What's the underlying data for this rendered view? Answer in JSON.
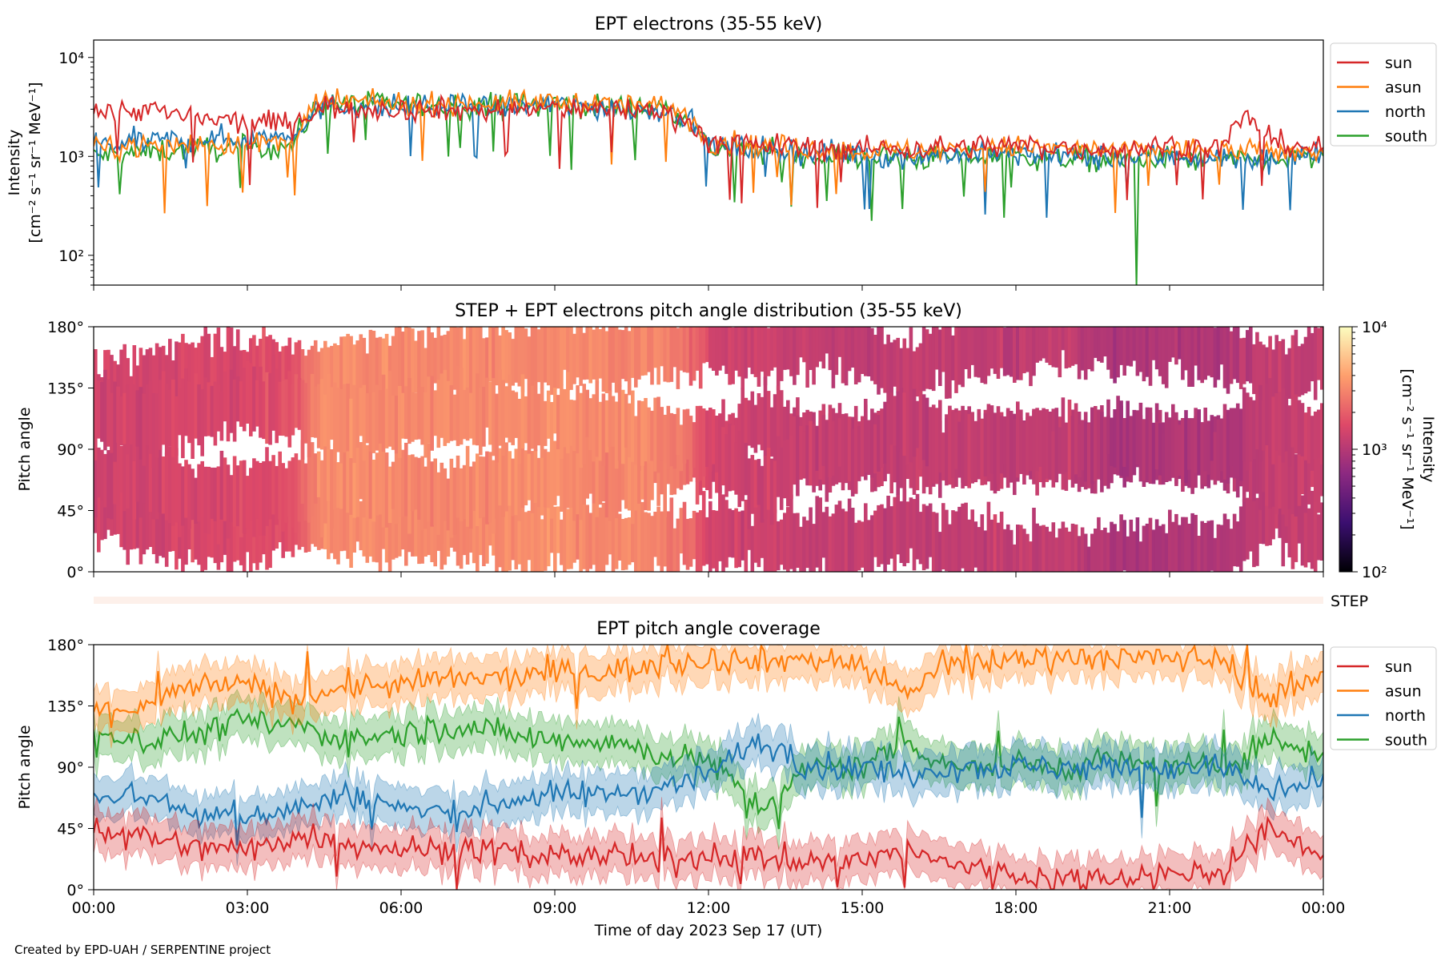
{
  "credit": "Created by EPD-UAH / SERPENTINE project",
  "colors": {
    "sun": "#d62728",
    "asun": "#ff7f0e",
    "north": "#1f77b4",
    "south": "#2ca02c",
    "colormap": [
      "#000004",
      "#3b0f70",
      "#8c2981",
      "#de4968",
      "#fe9f6d",
      "#fcfdbf"
    ]
  },
  "chart_data": [
    {
      "type": "line",
      "title": "EPT electrons (35-55 keV)",
      "ylabel_line1": "Intensity",
      "ylabel_line2": "[cm⁻² s⁻¹ sr⁻¹ MeV⁻¹]",
      "yscale": "log",
      "ylim": [
        50,
        15000
      ],
      "yticks": [
        {
          "value": 100,
          "label": "10²"
        },
        {
          "value": 1000,
          "label": "10³"
        },
        {
          "value": 10000,
          "label": "10⁴"
        }
      ],
      "xlim": [
        0,
        24
      ],
      "legend": [
        "sun",
        "asun",
        "north",
        "south"
      ],
      "legend_placement": "outside-right",
      "series": [
        {
          "name": "sun",
          "x": [
            0,
            1,
            2,
            3,
            3.9,
            4.5,
            6,
            8,
            9,
            10,
            11,
            11.5,
            12,
            13,
            14,
            15,
            16,
            17,
            18,
            19,
            20,
            21,
            22,
            22.5,
            23,
            24
          ],
          "values": [
            2800,
            3000,
            2400,
            2200,
            2200,
            3200,
            3000,
            2900,
            3100,
            3000,
            2900,
            2400,
            1400,
            1300,
            1250,
            1200,
            1200,
            1250,
            1300,
            1200,
            1200,
            1300,
            1200,
            2500,
            1400,
            1200
          ]
        },
        {
          "name": "asun",
          "x": [
            0,
            1,
            2,
            3,
            3.9,
            4.5,
            6,
            8,
            9,
            10,
            11,
            11.5,
            12,
            13,
            14,
            15,
            16,
            17,
            18,
            19,
            20,
            21,
            22,
            23,
            24
          ],
          "values": [
            1200,
            1300,
            1350,
            1300,
            1450,
            3600,
            3400,
            3500,
            3600,
            3400,
            3300,
            2800,
            1400,
            1300,
            1200,
            1150,
            1150,
            1200,
            1250,
            1200,
            1150,
            1200,
            1150,
            1100,
            1150
          ]
        },
        {
          "name": "north",
          "x": [
            0,
            1,
            2,
            3,
            3.9,
            4.5,
            6,
            8,
            9,
            10,
            11,
            11.5,
            12,
            13,
            14,
            15,
            16,
            17,
            18,
            19,
            20,
            21,
            22,
            23,
            24
          ],
          "values": [
            1300,
            1400,
            1500,
            1500,
            1700,
            3300,
            3100,
            3200,
            3300,
            3100,
            3000,
            2600,
            1300,
            1200,
            1100,
            1050,
            1000,
            1050,
            1050,
            1000,
            950,
            1000,
            950,
            950,
            1050
          ]
        },
        {
          "name": "south",
          "x": [
            0,
            1,
            2,
            3,
            3.9,
            4.5,
            6,
            8,
            9,
            10,
            11,
            11.5,
            12,
            13,
            14,
            15,
            16,
            17,
            18,
            19,
            20,
            21,
            22,
            23,
            24
          ],
          "values": [
            1000,
            1100,
            1200,
            1200,
            1300,
            3500,
            3300,
            3300,
            3400,
            3200,
            3100,
            2700,
            1200,
            1100,
            1000,
            1000,
            950,
            1000,
            1000,
            950,
            900,
            950,
            900,
            900,
            1000
          ]
        }
      ],
      "dips": [
        {
          "series": "south",
          "x": 20.35,
          "value": 50
        }
      ]
    },
    {
      "type": "heatmap",
      "title": "STEP + EPT electrons pitch angle distribution (35-55 keV)",
      "ylabel": "Pitch angle",
      "ylim": [
        0,
        180
      ],
      "yticks": [
        "0°",
        "45°",
        "90°",
        "135°",
        "180°"
      ],
      "xlim": [
        0,
        24
      ],
      "colorbar": {
        "label": "Intensity",
        "units": "[cm⁻² s⁻¹ sr⁻¹ MeV⁻¹]",
        "scale": "log",
        "range": [
          100,
          10000
        ],
        "ticks": [
          {
            "value": 100,
            "label": "10²"
          },
          {
            "value": 1000,
            "label": "10³"
          },
          {
            "value": 10000,
            "label": "10⁴"
          }
        ]
      },
      "intensity_by_time": {
        "x": [
          0,
          1,
          2,
          3,
          3.9,
          4.5,
          6,
          8,
          9,
          10,
          11,
          11.5,
          12,
          13,
          14,
          15,
          16,
          17,
          18,
          19,
          20,
          21,
          22,
          23,
          24
        ],
        "values": [
          1300,
          1400,
          1500,
          1500,
          1700,
          3300,
          3100,
          3200,
          3300,
          3100,
          3000,
          2600,
          1400,
          1300,
          1200,
          1150,
          1150,
          1150,
          1150,
          1150,
          900,
          950,
          950,
          1200,
          1200
        ]
      },
      "step_label": "STEP"
    },
    {
      "type": "line",
      "title": "EPT pitch angle coverage",
      "ylabel": "Pitch angle",
      "xlabel": "Time of day 2023 Sep 17 (UT)",
      "ylim": [
        0,
        180
      ],
      "yticks": [
        "0°",
        "45°",
        "90°",
        "135°",
        "180°"
      ],
      "xlim": [
        0,
        24
      ],
      "xticks": [
        "00:00",
        "03:00",
        "06:00",
        "09:00",
        "12:00",
        "15:00",
        "18:00",
        "21:00",
        "00:00"
      ],
      "legend": [
        "sun",
        "asun",
        "north",
        "south"
      ],
      "legend_placement": "outside-right",
      "band_halfwidth_deg": 15,
      "series": [
        {
          "name": "sun",
          "x": [
            0,
            1,
            2,
            3,
            4,
            5,
            6,
            7,
            8,
            9,
            10,
            11,
            12,
            13,
            14,
            15,
            15.8,
            16.5,
            17,
            18,
            19,
            20,
            21,
            22,
            23,
            24
          ],
          "values": [
            45,
            40,
            30,
            30,
            40,
            35,
            30,
            30,
            28,
            25,
            25,
            20,
            25,
            25,
            20,
            20,
            30,
            20,
            18,
            10,
            8,
            10,
            12,
            12,
            45,
            25
          ]
        },
        {
          "name": "asun",
          "x": [
            0,
            1,
            2,
            3,
            4,
            5,
            6,
            7,
            8,
            9,
            10,
            11,
            12,
            13,
            14,
            15,
            15.8,
            16.5,
            17,
            18,
            19,
            20,
            21,
            22,
            23,
            24
          ],
          "values": [
            130,
            135,
            150,
            150,
            140,
            150,
            150,
            155,
            155,
            160,
            160,
            165,
            170,
            168,
            170,
            165,
            145,
            160,
            165,
            170,
            172,
            170,
            170,
            170,
            140,
            160
          ]
        },
        {
          "name": "north",
          "x": [
            0,
            1,
            2,
            3,
            4,
            5,
            6,
            7,
            8,
            9,
            10,
            11,
            12,
            13,
            14,
            15,
            15.8,
            16.5,
            17,
            18,
            19,
            20,
            21,
            22,
            23,
            24
          ],
          "values": [
            70,
            70,
            55,
            55,
            60,
            70,
            60,
            55,
            65,
            70,
            70,
            75,
            85,
            110,
            90,
            90,
            85,
            90,
            90,
            90,
            90,
            90,
            90,
            90,
            70,
            80
          ]
        },
        {
          "name": "south",
          "x": [
            0,
            1,
            2,
            3,
            4,
            5,
            6,
            7,
            8,
            9,
            10,
            11,
            12,
            13,
            14,
            15,
            15.8,
            16.5,
            17,
            18,
            19,
            20,
            21,
            22,
            23,
            24
          ],
          "values": [
            115,
            110,
            115,
            125,
            120,
            110,
            115,
            120,
            115,
            110,
            110,
            100,
            95,
            60,
            90,
            90,
            110,
            95,
            90,
            92,
            90,
            95,
            90,
            90,
            110,
            100
          ]
        }
      ]
    }
  ]
}
